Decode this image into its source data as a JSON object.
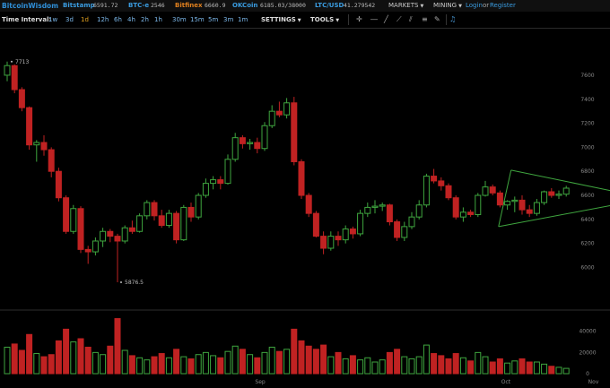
{
  "topbar": {
    "brand": "BitcoinWisdom",
    "exchanges": [
      {
        "name": "Bitstamp",
        "price": "6591.72",
        "color": "#3a9ce0"
      },
      {
        "name": "BTC-e",
        "price": "2546",
        "color": "#3a9ce0"
      },
      {
        "name": "Bitfinex",
        "price": "6660.9",
        "color": "#e0801e"
      },
      {
        "name": "OKCoin",
        "price": "6185.03/38000",
        "color": "#3a9ce0"
      },
      {
        "name": "LTC/USD",
        "price": "41.279542",
        "color": "#3a9ce0"
      }
    ],
    "markets_label": "MARKETS",
    "mining_label": "MINING",
    "login_label": "Login",
    "or_label": "or",
    "register_label": "Register"
  },
  "toolbar": {
    "time_interval_label": "Time Interval:",
    "intervals": [
      "1w",
      "3d",
      "1d",
      "12h",
      "6h",
      "4h",
      "2h",
      "1h",
      "30m",
      "15m",
      "5m",
      "3m",
      "1m"
    ],
    "active_interval": "1d",
    "settings_label": "SETTINGS",
    "tools_label": "TOOLS",
    "tool_icons": [
      "cursor-icon",
      "horizontal-line-icon",
      "trend-line-icon",
      "ray-icon",
      "parallel-icon",
      "fib-icon",
      "pen-icon",
      "clear-icon"
    ],
    "alarm_icon": "bell-icon"
  },
  "chart_data": {
    "type": "candlestick",
    "price_axis": {
      "ticks": [
        7600,
        7400,
        7200,
        7000,
        6800,
        6600,
        6400,
        6200,
        6000
      ],
      "range": [
        5750,
        7950
      ]
    },
    "volume_axis": {
      "ticks": [
        "40000",
        "20000",
        "0"
      ],
      "range": [
        0,
        55000
      ]
    },
    "x_labels": [
      "Sep",
      "Oct",
      "Nov"
    ],
    "up_color": "#3fa63f",
    "down_color": "#c02222",
    "high_label": "7713",
    "low_label": "5876.5",
    "candles": [
      {
        "o": 7600,
        "h": 7713,
        "l": 7550,
        "c": 7680
      },
      {
        "o": 7680,
        "h": 7690,
        "l": 7450,
        "c": 7480
      },
      {
        "o": 7480,
        "h": 7500,
        "l": 7300,
        "c": 7330
      },
      {
        "o": 7330,
        "h": 7340,
        "l": 6980,
        "c": 7020
      },
      {
        "o": 7020,
        "h": 7060,
        "l": 6880,
        "c": 7040
      },
      {
        "o": 7040,
        "h": 7100,
        "l": 6930,
        "c": 6980
      },
      {
        "o": 6980,
        "h": 7000,
        "l": 6750,
        "c": 6800
      },
      {
        "o": 6800,
        "h": 6830,
        "l": 6550,
        "c": 6580
      },
      {
        "o": 6580,
        "h": 6600,
        "l": 6280,
        "c": 6300
      },
      {
        "o": 6300,
        "h": 6520,
        "l": 6280,
        "c": 6490
      },
      {
        "o": 6490,
        "h": 6510,
        "l": 6120,
        "c": 6150
      },
      {
        "o": 6150,
        "h": 6180,
        "l": 6030,
        "c": 6130
      },
      {
        "o": 6130,
        "h": 6250,
        "l": 6100,
        "c": 6220
      },
      {
        "o": 6220,
        "h": 6330,
        "l": 6170,
        "c": 6300
      },
      {
        "o": 6300,
        "h": 6320,
        "l": 6210,
        "c": 6260
      },
      {
        "o": 6260,
        "h": 6280,
        "l": 5876.5,
        "c": 6220
      },
      {
        "o": 6220,
        "h": 6350,
        "l": 6200,
        "c": 6330
      },
      {
        "o": 6330,
        "h": 6390,
        "l": 6280,
        "c": 6300
      },
      {
        "o": 6300,
        "h": 6450,
        "l": 6290,
        "c": 6430
      },
      {
        "o": 6430,
        "h": 6560,
        "l": 6400,
        "c": 6540
      },
      {
        "o": 6540,
        "h": 6560,
        "l": 6390,
        "c": 6430
      },
      {
        "o": 6430,
        "h": 6480,
        "l": 6330,
        "c": 6350
      },
      {
        "o": 6350,
        "h": 6480,
        "l": 6330,
        "c": 6450
      },
      {
        "o": 6450,
        "h": 6470,
        "l": 6200,
        "c": 6230
      },
      {
        "o": 6230,
        "h": 6520,
        "l": 6220,
        "c": 6500
      },
      {
        "o": 6500,
        "h": 6540,
        "l": 6380,
        "c": 6420
      },
      {
        "o": 6420,
        "h": 6620,
        "l": 6400,
        "c": 6600
      },
      {
        "o": 6600,
        "h": 6740,
        "l": 6580,
        "c": 6700
      },
      {
        "o": 6700,
        "h": 6760,
        "l": 6650,
        "c": 6730
      },
      {
        "o": 6730,
        "h": 6760,
        "l": 6650,
        "c": 6700
      },
      {
        "o": 6700,
        "h": 6940,
        "l": 6690,
        "c": 6900
      },
      {
        "o": 6900,
        "h": 7120,
        "l": 6880,
        "c": 7080
      },
      {
        "o": 7080,
        "h": 7100,
        "l": 6990,
        "c": 7030
      },
      {
        "o": 7030,
        "h": 7070,
        "l": 6980,
        "c": 7040
      },
      {
        "o": 7040,
        "h": 7080,
        "l": 6950,
        "c": 6990
      },
      {
        "o": 6990,
        "h": 7210,
        "l": 6970,
        "c": 7180
      },
      {
        "o": 7180,
        "h": 7350,
        "l": 7160,
        "c": 7300
      },
      {
        "o": 7300,
        "h": 7380,
        "l": 7250,
        "c": 7270
      },
      {
        "o": 7270,
        "h": 7410,
        "l": 7240,
        "c": 7370
      },
      {
        "o": 7370,
        "h": 7420,
        "l": 6850,
        "c": 6880
      },
      {
        "o": 6880,
        "h": 6900,
        "l": 6570,
        "c": 6600
      },
      {
        "o": 6600,
        "h": 6620,
        "l": 6420,
        "c": 6450
      },
      {
        "o": 6450,
        "h": 6470,
        "l": 6250,
        "c": 6260
      },
      {
        "o": 6260,
        "h": 6300,
        "l": 6110,
        "c": 6160
      },
      {
        "o": 6160,
        "h": 6300,
        "l": 6140,
        "c": 6260
      },
      {
        "o": 6260,
        "h": 6300,
        "l": 6180,
        "c": 6230
      },
      {
        "o": 6230,
        "h": 6350,
        "l": 6200,
        "c": 6320
      },
      {
        "o": 6320,
        "h": 6340,
        "l": 6240,
        "c": 6280
      },
      {
        "o": 6280,
        "h": 6480,
        "l": 6260,
        "c": 6450
      },
      {
        "o": 6450,
        "h": 6540,
        "l": 6420,
        "c": 6500
      },
      {
        "o": 6500,
        "h": 6560,
        "l": 6450,
        "c": 6510
      },
      {
        "o": 6510,
        "h": 6540,
        "l": 6470,
        "c": 6520
      },
      {
        "o": 6520,
        "h": 6530,
        "l": 6350,
        "c": 6380
      },
      {
        "o": 6380,
        "h": 6400,
        "l": 6220,
        "c": 6250
      },
      {
        "o": 6250,
        "h": 6380,
        "l": 6220,
        "c": 6340
      },
      {
        "o": 6340,
        "h": 6460,
        "l": 6320,
        "c": 6420
      },
      {
        "o": 6420,
        "h": 6560,
        "l": 6400,
        "c": 6520
      },
      {
        "o": 6520,
        "h": 6780,
        "l": 6500,
        "c": 6760
      },
      {
        "o": 6760,
        "h": 6820,
        "l": 6700,
        "c": 6720
      },
      {
        "o": 6720,
        "h": 6750,
        "l": 6640,
        "c": 6680
      },
      {
        "o": 6680,
        "h": 6700,
        "l": 6560,
        "c": 6580
      },
      {
        "o": 6580,
        "h": 6600,
        "l": 6400,
        "c": 6420
      },
      {
        "o": 6420,
        "h": 6500,
        "l": 6380,
        "c": 6460
      },
      {
        "o": 6460,
        "h": 6480,
        "l": 6420,
        "c": 6440
      },
      {
        "o": 6440,
        "h": 6620,
        "l": 6420,
        "c": 6600
      },
      {
        "o": 6600,
        "h": 6720,
        "l": 6590,
        "c": 6670
      },
      {
        "o": 6670,
        "h": 6690,
        "l": 6600,
        "c": 6620
      },
      {
        "o": 6620,
        "h": 6640,
        "l": 6500,
        "c": 6520
      },
      {
        "o": 6520,
        "h": 6560,
        "l": 6480,
        "c": 6550
      },
      {
        "o": 6550,
        "h": 6590,
        "l": 6460,
        "c": 6560
      },
      {
        "o": 6560,
        "h": 6600,
        "l": 6440,
        "c": 6480
      },
      {
        "o": 6480,
        "h": 6520,
        "l": 6420,
        "c": 6450
      },
      {
        "o": 6450,
        "h": 6570,
        "l": 6430,
        "c": 6540
      },
      {
        "o": 6540,
        "h": 6640,
        "l": 6520,
        "c": 6630
      },
      {
        "o": 6630,
        "h": 6660,
        "l": 6580,
        "c": 6600
      },
      {
        "o": 6600,
        "h": 6640,
        "l": 6570,
        "c": 6610
      },
      {
        "o": 6610,
        "h": 6680,
        "l": 6590,
        "c": 6660
      }
    ],
    "volumes": [
      25000,
      28000,
      22000,
      37000,
      19000,
      16000,
      18000,
      31000,
      42000,
      30000,
      33000,
      25000,
      20000,
      18000,
      26000,
      52000,
      22000,
      17000,
      15000,
      13000,
      16000,
      19000,
      15000,
      23000,
      16000,
      14000,
      18000,
      20000,
      17000,
      15000,
      21000,
      26000,
      23000,
      18000,
      15000,
      20000,
      25000,
      21000,
      23000,
      42000,
      31000,
      26000,
      23000,
      27000,
      16000,
      20000,
      14000,
      17000,
      13000,
      15000,
      11000,
      13000,
      20000,
      23000,
      16000,
      14000,
      16000,
      27000,
      19000,
      17000,
      14000,
      19000,
      15000,
      12000,
      20000,
      16000,
      11000,
      14000,
      10000,
      12000,
      14000,
      11000,
      11000,
      9000,
      7000,
      6000,
      5000
    ],
    "triangle": {
      "upper": [
        {
          "i": 68.5,
          "p": 6810
        },
        {
          "i": 82,
          "p": 6640
        }
      ],
      "lower": [
        {
          "i": 66.8,
          "p": 6340
        },
        {
          "i": 82,
          "p": 6515
        }
      ]
    }
  }
}
